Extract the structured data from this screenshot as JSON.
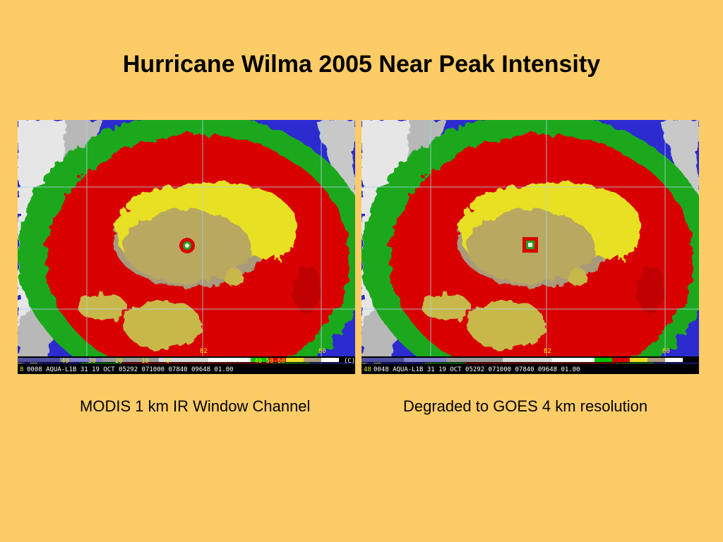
{
  "slide": {
    "title": "Hurricane Wilma 2005 Near Peak Intensity"
  },
  "panels": [
    {
      "caption": "MODIS 1 km IR Window Channel",
      "status_line": "0008 AQUA-L1B  31 19 OCT 05292 071000 07840 09648 01.00",
      "status_prefix": "8",
      "scale_labels": [
        "40",
        "30",
        "20",
        "10",
        "0",
        "-40-50-60"
      ],
      "corner_mark": "(C)",
      "grid_labels": [
        "82",
        "80"
      ]
    },
    {
      "caption": "Degraded to GOES 4 km resolution",
      "status_line": "0048 AQUA-L1B  31 19 OCT 05292 071000 07840 09648 01.00",
      "status_prefix": "48",
      "grid_labels": [
        "82",
        "80"
      ]
    }
  ]
}
